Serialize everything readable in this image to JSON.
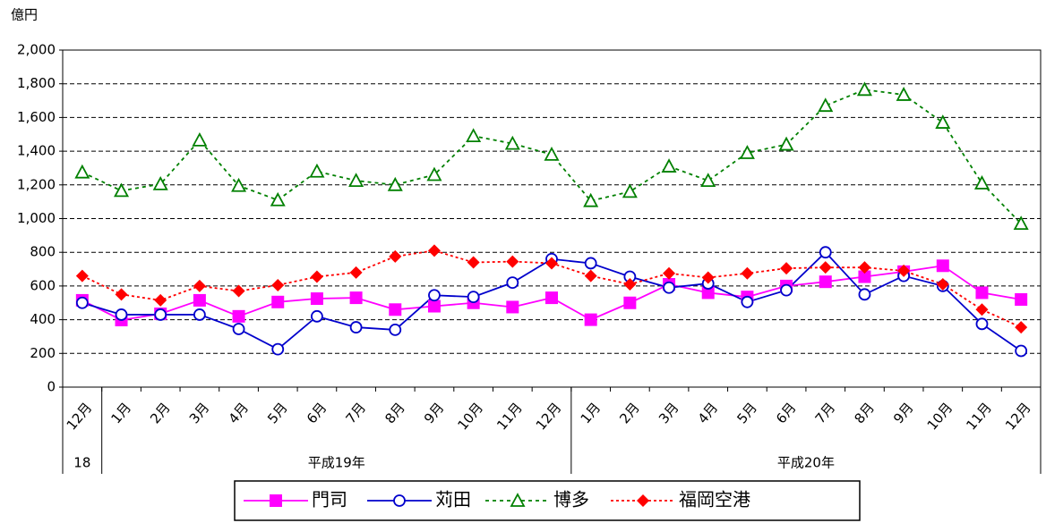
{
  "chart_data": {
    "type": "line",
    "y_label": "億円",
    "groups": [
      {
        "label": "18",
        "categories": [
          "12月"
        ]
      },
      {
        "label": "平成19年",
        "categories": [
          "1月",
          "2月",
          "3月",
          "4月",
          "5月",
          "6月",
          "7月",
          "8月",
          "9月",
          "10月",
          "11月",
          "12月"
        ]
      },
      {
        "label": "平成20年",
        "categories": [
          "1月",
          "2月",
          "3月",
          "4月",
          "5月",
          "6月",
          "7月",
          "8月",
          "9月",
          "10月",
          "11月",
          "12月"
        ]
      }
    ],
    "ylim": [
      0,
      2000
    ],
    "yticks": [
      0,
      {
        "value": 200,
        "label": "200"
      },
      400,
      600,
      800,
      {
        "value": 1000,
        "label": "1,000"
      },
      {
        "value": 1200,
        "label": "1,200"
      },
      {
        "value": 1400,
        "label": "1,400"
      },
      {
        "value": 1600,
        "label": "1,600"
      },
      {
        "value": 1800,
        "label": "1,800"
      },
      {
        "value": 2000,
        "label": "2,000"
      }
    ],
    "grid": true,
    "legend": "bottom",
    "series": [
      {
        "name": "門司",
        "color": "#ff00ff",
        "marker": "square",
        "line_style": "solid",
        "values": [
          515,
          398,
          435,
          515,
          420,
          505,
          525,
          530,
          460,
          480,
          500,
          475,
          530,
          400,
          500,
          610,
          560,
          535,
          600,
          625,
          655,
          685,
          720,
          560,
          520
        ]
      },
      {
        "name": "苅田",
        "color": "#0000cc",
        "marker": "circle",
        "line_style": "solid",
        "values": [
          500,
          430,
          430,
          430,
          345,
          225,
          420,
          355,
          340,
          545,
          535,
          620,
          760,
          735,
          655,
          590,
          615,
          505,
          575,
          800,
          550,
          660,
          600,
          375,
          215
        ]
      },
      {
        "name": "博多",
        "color": "#008000",
        "marker": "triangle",
        "line_style": "dashed",
        "values": [
          1275,
          1165,
          1205,
          1465,
          1195,
          1110,
          1280,
          1225,
          1200,
          1260,
          1490,
          1445,
          1380,
          1105,
          1160,
          1310,
          1225,
          1390,
          1440,
          1670,
          1765,
          1735,
          1570,
          1210,
          970
        ]
      },
      {
        "name": "福岡空港",
        "color": "#ff0000",
        "marker": "diamond",
        "line_style": "dashdot",
        "values": [
          660,
          550,
          515,
          600,
          570,
          605,
          655,
          680,
          775,
          810,
          740,
          745,
          735,
          660,
          610,
          675,
          650,
          675,
          705,
          710,
          710,
          690,
          610,
          460,
          355
        ]
      }
    ]
  }
}
